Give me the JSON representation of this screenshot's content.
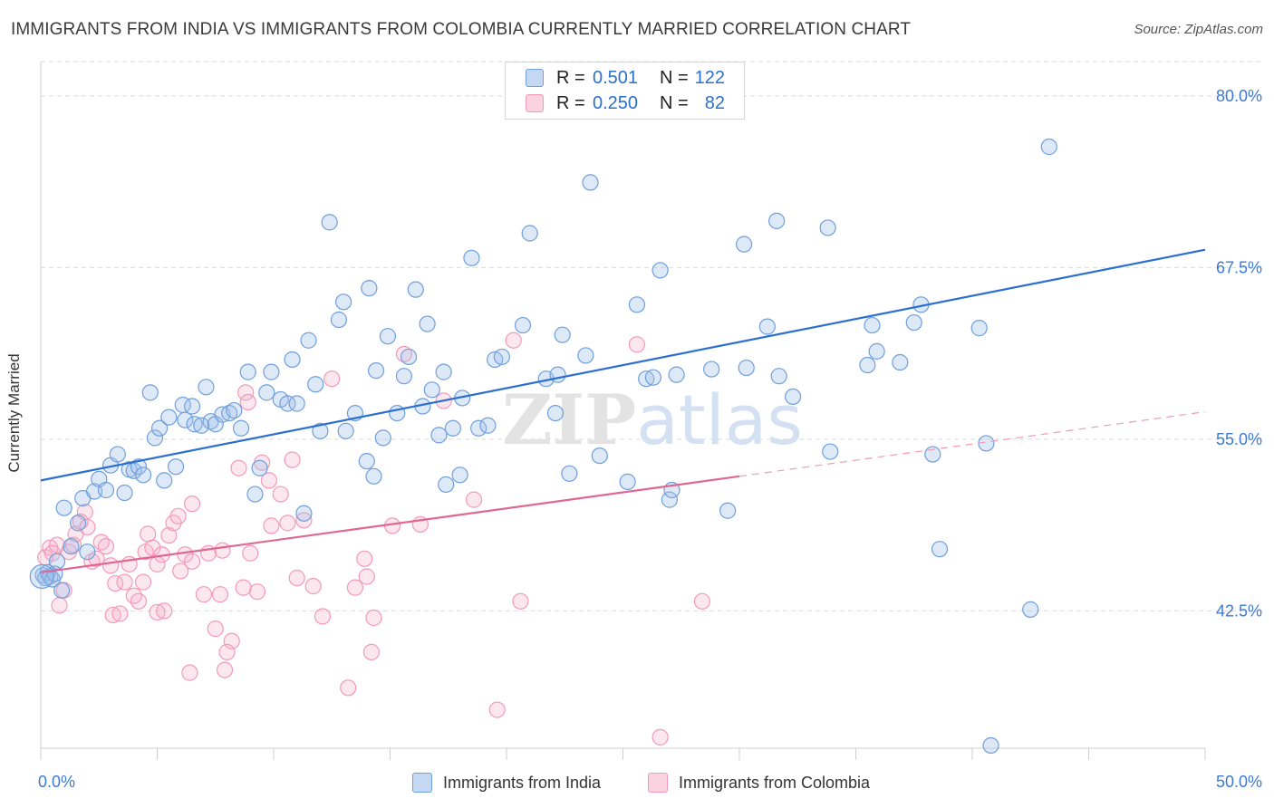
{
  "title": "IMMIGRANTS FROM INDIA VS IMMIGRANTS FROM COLOMBIA CURRENTLY MARRIED CORRELATION CHART",
  "source": "Source: ZipAtlas.com",
  "watermark": "ZIPatlas",
  "legend_top": {
    "rows": [
      {
        "r_label": "R =",
        "r_value": "0.501",
        "n_label": "N =",
        "n_value": "122",
        "color": "#6f9fdc"
      },
      {
        "r_label": "R =",
        "r_value": "0.250",
        "n_label": "N =",
        "n_value": "82",
        "color": "#f29ab8"
      }
    ]
  },
  "legend_bottom": [
    "Immigrants from India",
    "Immigrants from Colombia"
  ],
  "chart_data": {
    "type": "scatter",
    "title": "IMMIGRANTS FROM INDIA VS IMMIGRANTS FROM COLOMBIA CURRENTLY MARRIED CORRELATION CHART",
    "xlabel": "",
    "ylabel": "Currently Married",
    "xlim": [
      0,
      50
    ],
    "ylim": [
      32.5,
      82.5
    ],
    "x_tick_labels": [
      "0.0%",
      "50.0%"
    ],
    "y_ticks": [
      42.5,
      55.0,
      67.5,
      80.0
    ],
    "y_tick_labels": [
      "42.5%",
      "55.0%",
      "67.5%",
      "80.0%"
    ],
    "grid": true,
    "legend_position": "top-center",
    "series": [
      {
        "name": "Immigrants from India",
        "color": "#6f9fdc",
        "line_color": "#2b6fd0",
        "r": 0.501,
        "n": 122,
        "trend": {
          "x": [
            0,
            50
          ],
          "y": [
            52.0,
            68.8
          ]
        },
        "points": [
          [
            0.1,
            45.1
          ],
          [
            0.2,
            44.9
          ],
          [
            0.3,
            45.3
          ],
          [
            0.4,
            45.0
          ],
          [
            0.5,
            44.8
          ],
          [
            0.6,
            45.2
          ],
          [
            0.7,
            46.1
          ],
          [
            0.9,
            44.0
          ],
          [
            1.0,
            50.0
          ],
          [
            1.3,
            47.2
          ],
          [
            1.6,
            48.9
          ],
          [
            1.8,
            50.7
          ],
          [
            2.0,
            46.8
          ],
          [
            2.3,
            51.2
          ],
          [
            2.5,
            52.1
          ],
          [
            2.8,
            51.3
          ],
          [
            3.0,
            53.1
          ],
          [
            3.3,
            53.9
          ],
          [
            3.6,
            51.1
          ],
          [
            3.8,
            52.8
          ],
          [
            4.0,
            52.7
          ],
          [
            4.2,
            53.0
          ],
          [
            4.4,
            52.4
          ],
          [
            4.7,
            58.4
          ],
          [
            4.9,
            55.1
          ],
          [
            5.1,
            55.8
          ],
          [
            5.3,
            52.0
          ],
          [
            5.5,
            56.6
          ],
          [
            5.8,
            53.0
          ],
          [
            6.1,
            57.5
          ],
          [
            6.2,
            56.4
          ],
          [
            6.5,
            57.4
          ],
          [
            6.6,
            56.1
          ],
          [
            6.9,
            56.0
          ],
          [
            7.1,
            58.8
          ],
          [
            7.3,
            56.3
          ],
          [
            7.5,
            56.1
          ],
          [
            7.8,
            56.8
          ],
          [
            8.1,
            56.9
          ],
          [
            8.3,
            57.1
          ],
          [
            8.6,
            55.8
          ],
          [
            8.9,
            59.9
          ],
          [
            9.2,
            51.0
          ],
          [
            9.4,
            52.9
          ],
          [
            9.7,
            58.4
          ],
          [
            9.9,
            59.9
          ],
          [
            10.3,
            57.9
          ],
          [
            10.6,
            57.6
          ],
          [
            10.8,
            60.8
          ],
          [
            11.0,
            57.6
          ],
          [
            11.3,
            49.6
          ],
          [
            11.5,
            62.2
          ],
          [
            11.8,
            59.0
          ],
          [
            12.0,
            55.6
          ],
          [
            12.4,
            70.8
          ],
          [
            12.8,
            63.7
          ],
          [
            13.0,
            65.0
          ],
          [
            13.1,
            55.6
          ],
          [
            13.5,
            56.9
          ],
          [
            14.0,
            53.4
          ],
          [
            14.1,
            66.0
          ],
          [
            14.3,
            52.3
          ],
          [
            14.4,
            60.0
          ],
          [
            14.7,
            55.1
          ],
          [
            14.9,
            62.5
          ],
          [
            15.3,
            56.9
          ],
          [
            15.6,
            59.6
          ],
          [
            15.8,
            61.0
          ],
          [
            16.1,
            65.9
          ],
          [
            16.4,
            57.4
          ],
          [
            16.6,
            63.4
          ],
          [
            16.8,
            58.6
          ],
          [
            17.1,
            55.3
          ],
          [
            17.3,
            59.9
          ],
          [
            17.4,
            51.7
          ],
          [
            17.7,
            55.8
          ],
          [
            18.0,
            52.4
          ],
          [
            18.1,
            58.0
          ],
          [
            18.5,
            68.2
          ],
          [
            18.8,
            55.8
          ],
          [
            19.2,
            56.0
          ],
          [
            19.5,
            60.8
          ],
          [
            19.8,
            61.0
          ],
          [
            20.7,
            63.3
          ],
          [
            21.0,
            70.0
          ],
          [
            21.7,
            59.4
          ],
          [
            22.1,
            56.9
          ],
          [
            22.2,
            59.7
          ],
          [
            22.4,
            62.6
          ],
          [
            22.7,
            52.5
          ],
          [
            23.4,
            61.1
          ],
          [
            23.6,
            73.7
          ],
          [
            24.0,
            53.8
          ],
          [
            25.2,
            51.9
          ],
          [
            25.6,
            64.8
          ],
          [
            26.0,
            59.4
          ],
          [
            26.3,
            59.5
          ],
          [
            26.6,
            67.3
          ],
          [
            27.0,
            50.6
          ],
          [
            27.1,
            51.3
          ],
          [
            27.3,
            59.7
          ],
          [
            28.8,
            60.1
          ],
          [
            29.5,
            49.8
          ],
          [
            30.2,
            69.2
          ],
          [
            30.3,
            60.2
          ],
          [
            31.2,
            63.2
          ],
          [
            31.6,
            70.9
          ],
          [
            31.7,
            59.6
          ],
          [
            32.3,
            58.1
          ],
          [
            33.8,
            70.4
          ],
          [
            33.9,
            54.1
          ],
          [
            35.5,
            60.4
          ],
          [
            35.7,
            63.3
          ],
          [
            35.9,
            61.4
          ],
          [
            36.9,
            60.6
          ],
          [
            37.5,
            63.5
          ],
          [
            37.8,
            64.8
          ],
          [
            38.3,
            53.9
          ],
          [
            38.6,
            47.0
          ],
          [
            40.3,
            63.1
          ],
          [
            40.6,
            54.7
          ],
          [
            40.8,
            32.7
          ],
          [
            42.5,
            42.6
          ],
          [
            43.3,
            76.3
          ]
        ]
      },
      {
        "name": "Immigrants from Colombia",
        "color": "#f29ab8",
        "line_color": "#e06792",
        "r": 0.25,
        "n": 82,
        "trend": {
          "x": [
            0,
            30
          ],
          "y": [
            45.3,
            52.3
          ]
        },
        "trend_extension": {
          "x": [
            30,
            50
          ],
          "y": [
            52.3,
            57.0
          ]
        },
        "points": [
          [
            0.2,
            46.4
          ],
          [
            0.4,
            47.1
          ],
          [
            0.5,
            46.7
          ],
          [
            0.7,
            47.3
          ],
          [
            0.8,
            42.9
          ],
          [
            1.0,
            44.0
          ],
          [
            1.2,
            46.8
          ],
          [
            1.4,
            47.3
          ],
          [
            1.5,
            48.1
          ],
          [
            1.7,
            49.0
          ],
          [
            1.9,
            49.7
          ],
          [
            2.0,
            48.6
          ],
          [
            2.2,
            46.1
          ],
          [
            2.4,
            46.3
          ],
          [
            2.6,
            47.5
          ],
          [
            2.8,
            47.2
          ],
          [
            3.0,
            45.8
          ],
          [
            3.2,
            44.5
          ],
          [
            3.1,
            42.2
          ],
          [
            3.4,
            42.3
          ],
          [
            3.6,
            44.6
          ],
          [
            3.8,
            45.9
          ],
          [
            4.0,
            43.6
          ],
          [
            4.2,
            43.2
          ],
          [
            4.4,
            44.6
          ],
          [
            4.5,
            46.8
          ],
          [
            4.6,
            48.1
          ],
          [
            4.8,
            47.1
          ],
          [
            5.0,
            45.9
          ],
          [
            5.2,
            46.6
          ],
          [
            5.0,
            42.4
          ],
          [
            5.3,
            42.5
          ],
          [
            5.5,
            48.0
          ],
          [
            5.7,
            48.9
          ],
          [
            5.9,
            49.4
          ],
          [
            6.0,
            45.4
          ],
          [
            6.2,
            46.6
          ],
          [
            6.5,
            50.3
          ],
          [
            6.5,
            46.1
          ],
          [
            6.4,
            38.0
          ],
          [
            7.0,
            43.7
          ],
          [
            7.2,
            46.7
          ],
          [
            7.5,
            41.2
          ],
          [
            7.7,
            43.7
          ],
          [
            7.8,
            46.9
          ],
          [
            7.9,
            38.2
          ],
          [
            8.0,
            39.5
          ],
          [
            8.2,
            40.3
          ],
          [
            8.5,
            52.9
          ],
          [
            8.7,
            44.2
          ],
          [
            8.8,
            58.4
          ],
          [
            8.9,
            57.7
          ],
          [
            9.0,
            46.7
          ],
          [
            9.3,
            43.9
          ],
          [
            9.5,
            53.3
          ],
          [
            9.8,
            52.0
          ],
          [
            9.9,
            48.7
          ],
          [
            10.3,
            51.0
          ],
          [
            10.6,
            48.9
          ],
          [
            10.8,
            53.5
          ],
          [
            11.0,
            44.9
          ],
          [
            11.3,
            49.1
          ],
          [
            11.7,
            44.3
          ],
          [
            12.1,
            42.1
          ],
          [
            12.5,
            59.4
          ],
          [
            13.2,
            36.9
          ],
          [
            13.5,
            44.2
          ],
          [
            13.9,
            46.3
          ],
          [
            14.0,
            45.0
          ],
          [
            14.2,
            39.5
          ],
          [
            14.3,
            42.0
          ],
          [
            15.1,
            48.7
          ],
          [
            15.6,
            61.2
          ],
          [
            16.3,
            48.8
          ],
          [
            17.3,
            57.8
          ],
          [
            18.6,
            50.6
          ],
          [
            19.6,
            35.3
          ],
          [
            20.3,
            62.2
          ],
          [
            20.6,
            43.2
          ],
          [
            25.6,
            61.9
          ],
          [
            26.6,
            33.3
          ],
          [
            28.4,
            43.2
          ]
        ]
      }
    ]
  }
}
